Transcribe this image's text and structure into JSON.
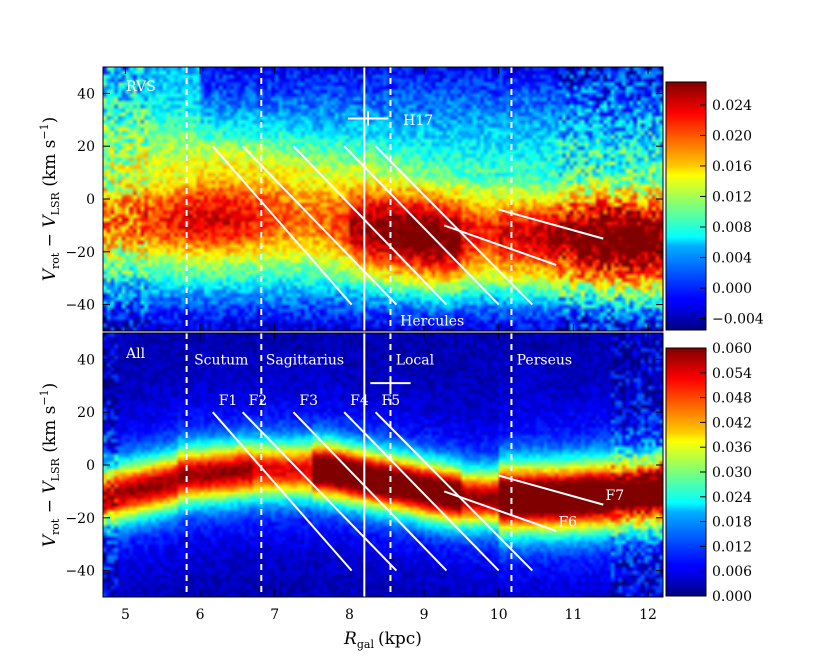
{
  "chart_data": {
    "type": "heatmap",
    "xlabel_main": "R",
    "xlabel_sub": "gal",
    "xlabel_unit": "(kpc)",
    "xlim": [
      4.7,
      12.2
    ],
    "x_ticks": [
      "5",
      "6",
      "7",
      "8",
      "9",
      "10",
      "11",
      "12"
    ],
    "x_tick_values": [
      5,
      6,
      7,
      8,
      9,
      10,
      11,
      12
    ],
    "ylabel_text": "V_rot − V_LSR (km s^−1)",
    "ylabel_parts": {
      "v1": "V",
      "s1": "rot",
      "minus": " − ",
      "v2": "V",
      "s2": "LSR",
      "unit": " (km s",
      "exp": "−1",
      "close": ")"
    },
    "ylim": [
      -50,
      50
    ],
    "y_ticks": [
      "40",
      "20",
      "0",
      "−20",
      "−40"
    ],
    "y_tick_values": [
      40,
      20,
      0,
      -20,
      -40
    ],
    "vertical_lines": [
      {
        "x": 5.82,
        "style": "dashed"
      },
      {
        "x": 6.82,
        "style": "dashed"
      },
      {
        "x": 8.2,
        "style": "solid"
      },
      {
        "x": 8.55,
        "style": "dashed"
      },
      {
        "x": 10.17,
        "style": "dashed"
      }
    ],
    "panels": [
      {
        "name": "RVS",
        "label": "RVS",
        "colorbar_ticks": [
          "0.024",
          "0.020",
          "0.016",
          "0.012",
          "0.008",
          "0.004",
          "0.000",
          "−0.004"
        ],
        "colorbar_tick_values": [
          0.024,
          0.02,
          0.016,
          0.012,
          0.008,
          0.004,
          0.0,
          -0.004
        ],
        "colorbar_range": [
          -0.0055,
          0.027
        ],
        "annotations": [
          {
            "text": "H17",
            "x": 8.72,
            "y": 30
          },
          {
            "text": "Hercules",
            "x": 8.68,
            "y": -46
          }
        ],
        "error_bar": {
          "x": 8.25,
          "xerr": 0.27,
          "y": 30.5
        },
        "ridge_lines": [
          {
            "name": "F1",
            "x": [
              6.17,
              8.03
            ],
            "y": [
              20,
              -40
            ]
          },
          {
            "name": "F2",
            "x": [
              6.57,
              8.63
            ],
            "y": [
              20,
              -40
            ]
          },
          {
            "name": "F3",
            "x": [
              7.25,
              9.3
            ],
            "y": [
              20,
              -40
            ]
          },
          {
            "name": "F4",
            "x": [
              7.93,
              10.0
            ],
            "y": [
              20,
              -40
            ]
          },
          {
            "name": "F5",
            "x": [
              8.35,
              10.45
            ],
            "y": [
              20,
              -40
            ]
          },
          {
            "name": "F6",
            "x": [
              9.27,
              10.77
            ],
            "y": [
              -10,
              -25
            ]
          },
          {
            "name": "F7",
            "x": [
              10.0,
              11.4
            ],
            "y": [
              -4,
              -15
            ]
          }
        ]
      },
      {
        "name": "All",
        "label": "All",
        "colorbar_ticks": [
          "0.060",
          "0.054",
          "0.048",
          "0.042",
          "0.036",
          "0.030",
          "0.024",
          "0.018",
          "0.012",
          "0.006",
          "0.000"
        ],
        "colorbar_tick_values": [
          0.06,
          0.054,
          0.048,
          0.042,
          0.036,
          0.03,
          0.024,
          0.018,
          0.012,
          0.006,
          0.0
        ],
        "colorbar_range": [
          0.0,
          0.06
        ],
        "arm_labels": [
          {
            "text": "Scutum",
            "x": 5.92
          },
          {
            "text": "Sagittarius",
            "x": 6.88
          },
          {
            "text": "Local",
            "x": 8.62
          },
          {
            "text": "Perseus",
            "x": 10.24
          }
        ],
        "error_bar": {
          "x": 8.55,
          "xerr": 0.27,
          "y": 31
        },
        "ridge_lines": [
          {
            "name": "F1",
            "x": [
              6.17,
              8.03
            ],
            "y": [
              20,
              -40
            ],
            "label_x": 6.25,
            "label_y": 22
          },
          {
            "name": "F2",
            "x": [
              6.57,
              8.63
            ],
            "y": [
              20,
              -40
            ],
            "label_x": 6.65,
            "label_y": 22
          },
          {
            "name": "F3",
            "x": [
              7.25,
              9.3
            ],
            "y": [
              20,
              -40
            ],
            "label_x": 7.33,
            "label_y": 22
          },
          {
            "name": "F4",
            "x": [
              7.93,
              10.0
            ],
            "y": [
              20,
              -40
            ],
            "label_x": 8.01,
            "label_y": 22
          },
          {
            "name": "F5",
            "x": [
              8.35,
              10.45
            ],
            "y": [
              20,
              -40
            ],
            "label_x": 8.43,
            "label_y": 22
          },
          {
            "name": "F6",
            "x": [
              9.27,
              10.77
            ],
            "y": [
              -10,
              -25
            ],
            "label_x": 10.8,
            "label_y": -24
          },
          {
            "name": "F7",
            "x": [
              10.0,
              11.4
            ],
            "y": [
              -4,
              -15
            ],
            "label_x": 11.43,
            "label_y": -14
          }
        ]
      }
    ]
  }
}
